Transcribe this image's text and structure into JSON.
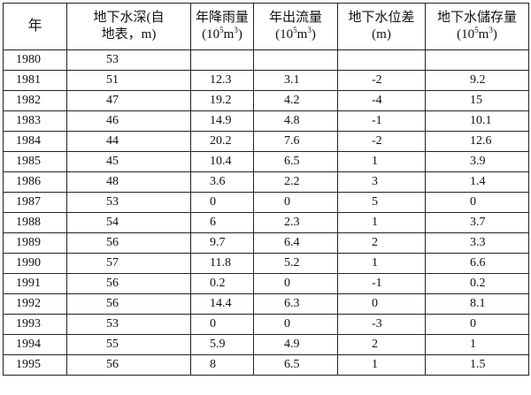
{
  "table": {
    "headers": [
      {
        "line1": "年",
        "line2": "",
        "exp": ""
      },
      {
        "line1": "地下水深(自",
        "line2": "地表，m)",
        "exp": ""
      },
      {
        "line1": "年降雨量",
        "line2_pre": "(10",
        "line2_sup": "5",
        "line2_mid": "m",
        "line2_sup2": "3",
        "line2_post": ")"
      },
      {
        "line1": "年出流量",
        "line2_pre": "(10",
        "line2_sup": "5",
        "line2_mid": "m",
        "line2_sup2": "3",
        "line2_post": ")"
      },
      {
        "line1": "地下水位差",
        "line2": "(m)"
      },
      {
        "line1": "地下水儲存量",
        "line2_pre": "(10",
        "line2_sup": "5",
        "line2_mid": "m",
        "line2_sup2": "3",
        "line2_post": ")"
      }
    ],
    "rows": [
      [
        "1980",
        "53",
        "",
        "",
        "",
        ""
      ],
      [
        "1981",
        "51",
        "12.3",
        "3.1",
        "-2",
        "9.2"
      ],
      [
        "1982",
        "47",
        "19.2",
        "4.2",
        "-4",
        "15"
      ],
      [
        "1983",
        "46",
        "14.9",
        "4.8",
        "-1",
        "10.1"
      ],
      [
        "1984",
        "44",
        "20.2",
        "7.6",
        "-2",
        "12.6"
      ],
      [
        "1985",
        "45",
        "10.4",
        "6.5",
        "1",
        "3.9"
      ],
      [
        "1986",
        "48",
        "3.6",
        "2.2",
        "3",
        "1.4"
      ],
      [
        "1987",
        "53",
        "0",
        "0",
        "5",
        "0"
      ],
      [
        "1988",
        "54",
        "6",
        "2.3",
        "1",
        "3.7"
      ],
      [
        "1989",
        "56",
        "9.7",
        "6.4",
        "2",
        "3.3"
      ],
      [
        "1990",
        "57",
        "11.8",
        "5.2",
        "1",
        "6.6"
      ],
      [
        "1991",
        "56",
        "0.2",
        "0",
        "-1",
        "0.2"
      ],
      [
        "1992",
        "56",
        "14.4",
        "6.3",
        "0",
        "8.1"
      ],
      [
        "1993",
        "53",
        "0",
        "0",
        "-3",
        "0"
      ],
      [
        "1994",
        "55",
        "5.9",
        "4.9",
        "2",
        "1"
      ],
      [
        "1995",
        "56",
        "8",
        "6.5",
        "1",
        "1.5"
      ]
    ]
  }
}
